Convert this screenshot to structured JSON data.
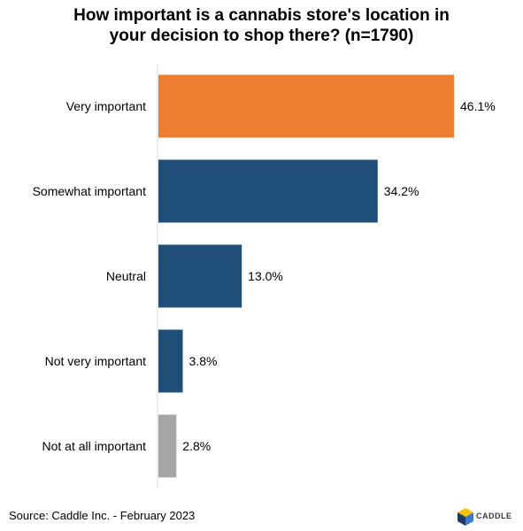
{
  "title": {
    "line1": "How important is a cannabis store's location in",
    "line2": "your decision to shop there? (n=1790)"
  },
  "source": "Source: Caddle Inc. - February 2023",
  "logo": {
    "text": "CADDLE",
    "colors": [
      "#f5c400",
      "#1f3a68",
      "#3b7bc9"
    ]
  },
  "chart_data": {
    "type": "bar",
    "orientation": "horizontal",
    "categories": [
      "Very important",
      "Somewhat important",
      "Neutral",
      "Not very important",
      "Not at all important"
    ],
    "values": [
      46.1,
      34.2,
      13.0,
      3.8,
      2.8
    ],
    "value_labels": [
      "46.1%",
      "34.2%",
      "13.0%",
      "3.8%",
      "2.8%"
    ],
    "colors": [
      "#ed7d31",
      "#1f4e79",
      "#1f4e79",
      "#1f4e79",
      "#a5a5a5"
    ],
    "xlim": [
      0,
      50
    ],
    "grid": false,
    "legend": "none"
  }
}
